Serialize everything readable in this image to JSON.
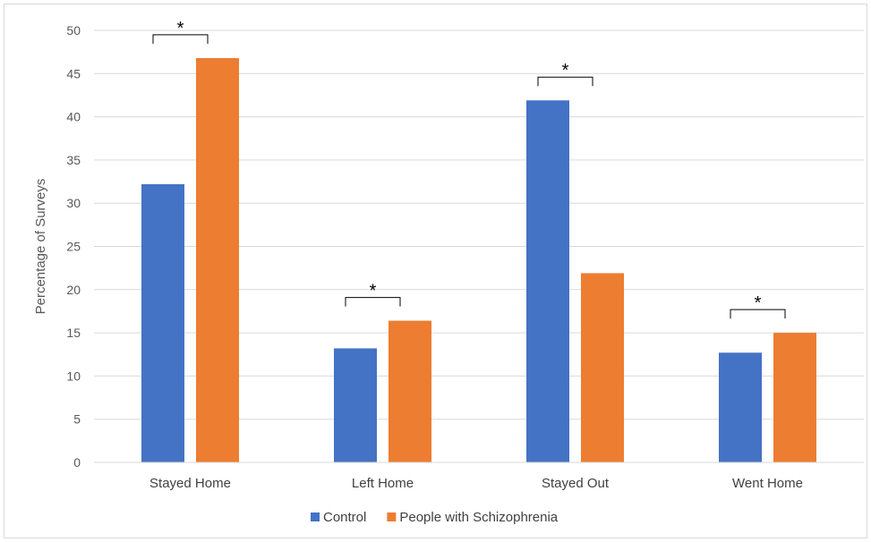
{
  "chart_data": {
    "type": "bar",
    "title": "",
    "xlabel": "",
    "ylabel": "Percentage of Surveys",
    "ylim": [
      0,
      50
    ],
    "yticks": [
      0,
      5,
      10,
      15,
      20,
      25,
      30,
      35,
      40,
      45,
      50
    ],
    "grid": true,
    "legend_position": "bottom",
    "categories": [
      "Stayed Home",
      "Left Home",
      "Stayed Out",
      "Went Home"
    ],
    "series": [
      {
        "name": "Control",
        "color": "#4472C4",
        "values": [
          32.2,
          13.2,
          41.9,
          12.7
        ]
      },
      {
        "name": "People with Schizophrenia",
        "color": "#ED7D31",
        "values": [
          46.8,
          16.4,
          21.9,
          15.0
        ]
      }
    ],
    "annotations": [
      {
        "category": "Stayed Home",
        "text": "*"
      },
      {
        "category": "Left Home",
        "text": "*"
      },
      {
        "category": "Stayed Out",
        "text": "*"
      },
      {
        "category": "Went Home",
        "text": "*"
      }
    ]
  }
}
